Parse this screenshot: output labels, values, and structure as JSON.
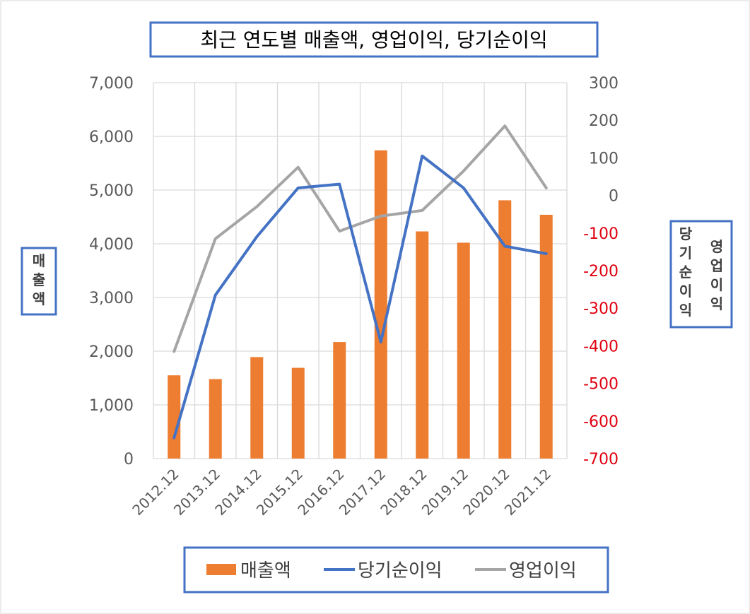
{
  "chart_data": {
    "type": "bar",
    "title": "최근 연도별 매출액, 영업이익, 당기순이익",
    "categories": [
      "2012.12",
      "2013.12",
      "2014.12",
      "2015.12",
      "2016.12",
      "2017.12",
      "2018.12",
      "2019.12",
      "2020.12",
      "2021.12"
    ],
    "series": [
      {
        "name": "매출액",
        "type": "bar",
        "axis": "left",
        "color": "#ed7d31",
        "values": [
          1550,
          1480,
          1890,
          1690,
          2170,
          5740,
          4230,
          4020,
          4810,
          4540
        ]
      },
      {
        "name": "당기순이익",
        "type": "line",
        "axis": "right",
        "color": "#4472c4",
        "values": [
          -645,
          -265,
          -110,
          20,
          30,
          -390,
          105,
          20,
          -135,
          -155
        ]
      },
      {
        "name": "영업이익",
        "type": "line",
        "axis": "right",
        "color": "#a5a5a5",
        "values": [
          -415,
          -115,
          -30,
          75,
          -95,
          -55,
          -40,
          65,
          185,
          20
        ]
      }
    ],
    "y_left": {
      "label": "매출액",
      "range": [
        0,
        7000
      ],
      "ticks": [
        "7,000",
        "6,000",
        "5,000",
        "4,000",
        "3,000",
        "2,000",
        "1,000",
        "0"
      ]
    },
    "y_right": {
      "label_1": "당기순이익",
      "label_2": "영업이익",
      "range": [
        -700,
        300
      ],
      "ticks": [
        "300",
        "200",
        "100",
        "0",
        "-100",
        "-200",
        "-300",
        "-400",
        "-500",
        "-600",
        "-700"
      ],
      "negative_color": "#e0000f"
    },
    "grid": true,
    "legend": "bottom"
  }
}
